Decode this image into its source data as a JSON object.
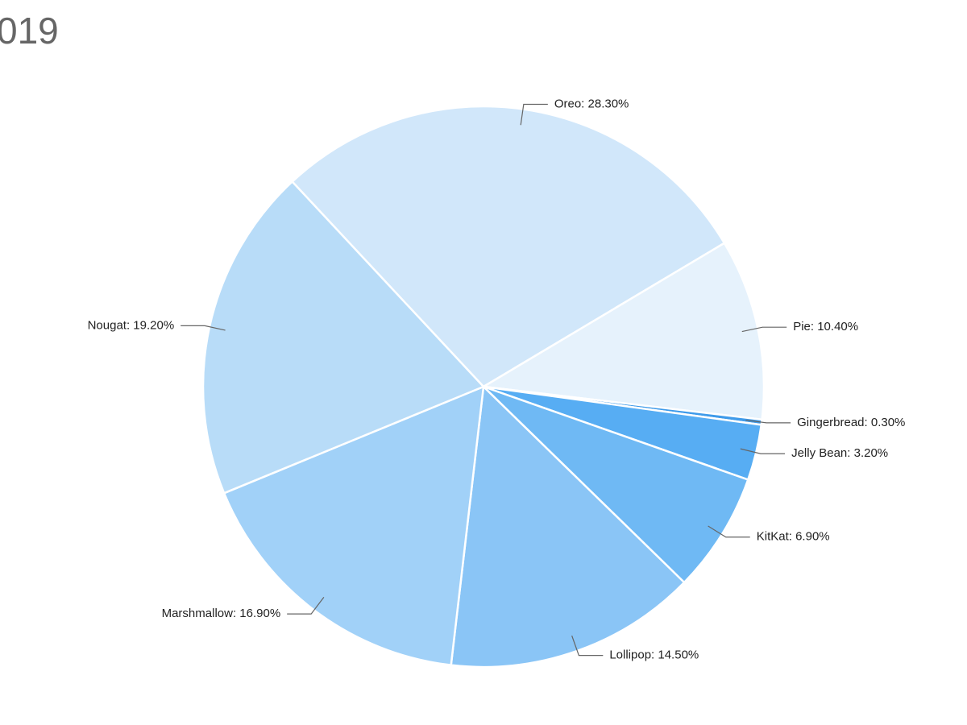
{
  "chart_data": {
    "type": "pie",
    "title": "019",
    "values": [
      28.3,
      10.4,
      0.3,
      3.2,
      6.9,
      14.5,
      16.9,
      19.2
    ],
    "value_labels": [
      "Oreo: 28.30%",
      "Pie: 10.40%",
      "Gingerbread: 0.30%",
      "Jelly Bean: 3.20%",
      "KitKat: 6.90%",
      "Lollipop: 14.50%",
      "Marshmallow: 16.90%",
      "Nougat: 19.20%"
    ],
    "colors": [
      "#d1e7fa",
      "#e6f2fc",
      "#3f9bea",
      "#57adf3",
      "#6fb9f4",
      "#8ac5f6",
      "#a1d1f8",
      "#b8dcf8"
    ]
  }
}
